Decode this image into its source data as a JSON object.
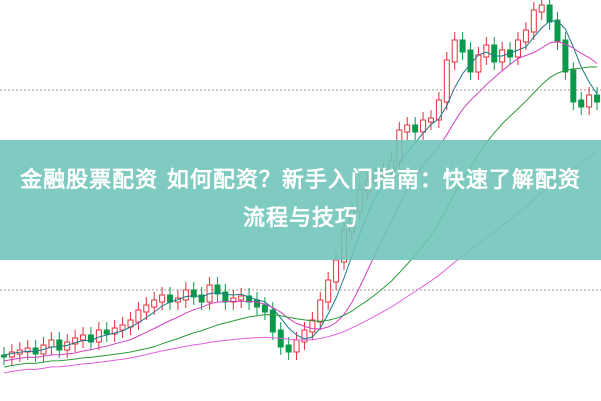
{
  "article": {
    "title": "金融股票配资 如何配资？新手入门指南：快速了解配资流程与技巧"
  },
  "colors": {
    "banner": "#6ec4b8",
    "up_candle": "#e0303a",
    "down_candle": "#0a9a4a",
    "ma_lines": [
      "#1a7a8a",
      "#d040c0",
      "#2a9a3a",
      "#e060e0"
    ]
  }
}
